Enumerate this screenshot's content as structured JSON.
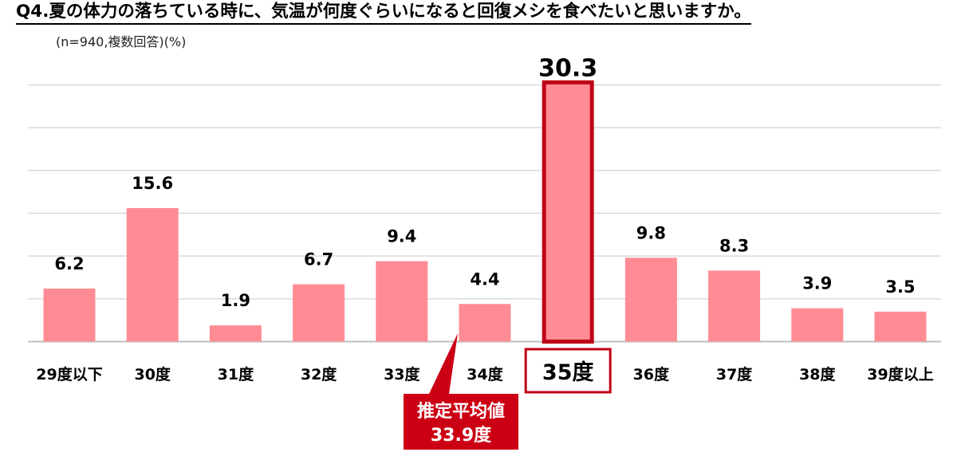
{
  "chart_data": {
    "type": "bar",
    "title": "Q4.夏の体力の落ちている時に、気温が何度ぐらいになると回復メシを食べたいと思いますか。",
    "subtitle": "(n=940,複数回答)(%)",
    "categories": [
      "29度以下",
      "30度",
      "31度",
      "32度",
      "33度",
      "34度",
      "35度",
      "36度",
      "37度",
      "38度",
      "39度以上"
    ],
    "values": [
      6.2,
      15.6,
      1.9,
      6.7,
      9.4,
      4.4,
      30.3,
      9.8,
      8.3,
      3.9,
      3.5
    ],
    "value_labels": [
      "6.2",
      "15.6",
      "1.9",
      "6.7",
      "9.4",
      "4.4",
      "30.3",
      "9.8",
      "8.3",
      "3.9",
      "3.5"
    ],
    "highlight_index": 6,
    "ylim": [
      0,
      30
    ],
    "gridlines": [
      0,
      5,
      10,
      15,
      20,
      25,
      30
    ],
    "grid": true,
    "bar_color": "#ff8c94",
    "highlight_color": "#c00014",
    "annotation": {
      "line1": "推定平均値",
      "line2": "33.9度",
      "color": "#cc0014"
    }
  }
}
